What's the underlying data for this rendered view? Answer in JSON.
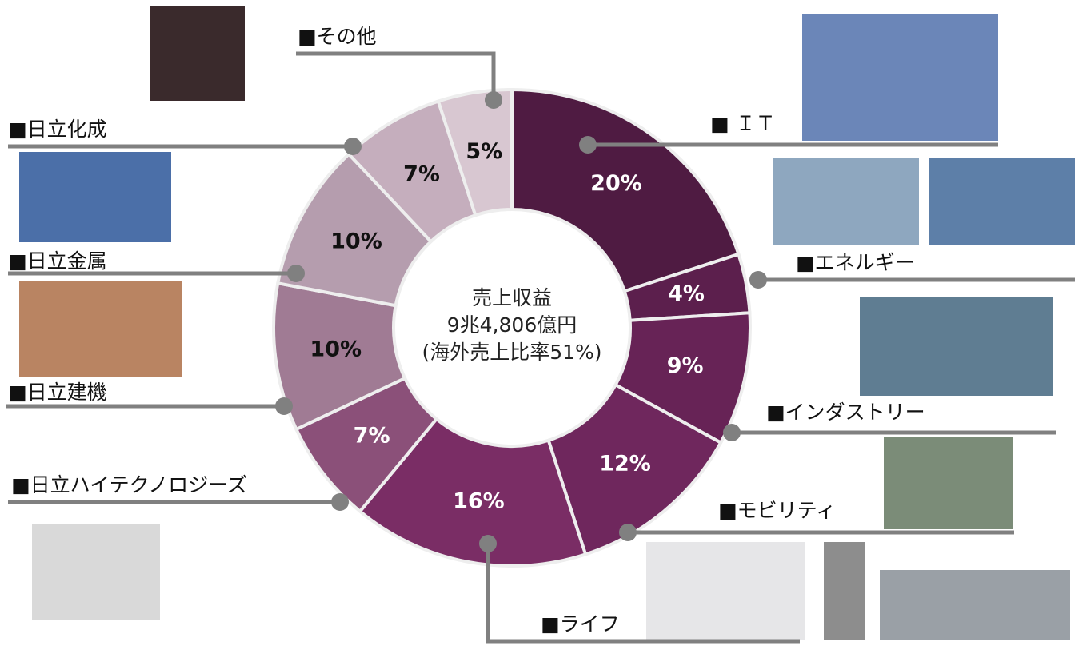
{
  "chart_data": {
    "type": "donut",
    "categories": [
      "■ ＩＴ",
      "■エネルギー",
      "■インダストリー",
      "■モビリティ",
      "■ライフ",
      "■日立ハイテクノロジーズ",
      "■日立建機",
      "■日立金属",
      "■日立化成",
      "■その他"
    ],
    "values": [
      20,
      4,
      9,
      12,
      16,
      7,
      10,
      10,
      7,
      5
    ],
    "value_labels": [
      "20%",
      "4%",
      "9%",
      "12%",
      "16%",
      "7%",
      "10%",
      "10%",
      "7%",
      "5%"
    ],
    "colors": [
      "#4f1b42",
      "#5c1f4d",
      "#672356",
      "#6f275d",
      "#7a2d65",
      "#8b5079",
      "#a07b94",
      "#b59dae",
      "#c5aebd",
      "#d8c7d1"
    ],
    "center_text": [
      "売上収益",
      "9兆4,806億円",
      "(海外売上比率51%)"
    ]
  }
}
